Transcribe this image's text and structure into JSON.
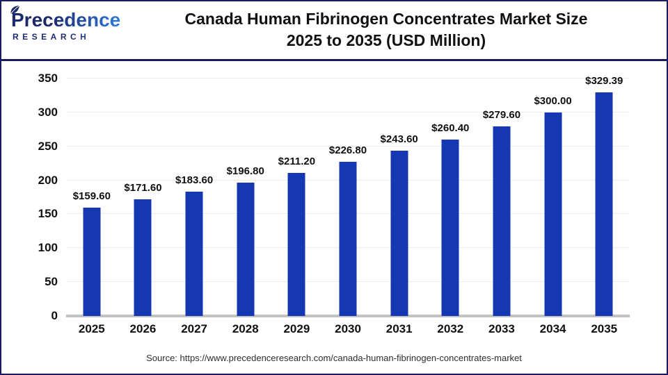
{
  "header": {
    "logo": {
      "brand": "Precedence",
      "sub": "RESEARCH"
    },
    "title_line1": "Canada Human Fibrinogen Concentrates Market Size",
    "title_line2": "2025 to 2035 (USD Million)"
  },
  "chart_data": {
    "type": "bar",
    "title": "Canada Human Fibrinogen Concentrates Market Size 2025 to 2035 (USD Million)",
    "categories": [
      "2025",
      "2026",
      "2027",
      "2028",
      "2029",
      "2030",
      "2031",
      "2032",
      "2033",
      "2034",
      "2035"
    ],
    "values": [
      159.6,
      171.6,
      183.6,
      196.8,
      211.2,
      226.8,
      243.6,
      260.4,
      279.6,
      300.0,
      329.39
    ],
    "bar_labels": [
      "$159.60",
      "$171.60",
      "$183.60",
      "$196.80",
      "$211.20",
      "$226.80",
      "$243.60",
      "$260.40",
      "$279.60",
      "$300.00",
      "$329.39"
    ],
    "xlabel": "",
    "ylabel": "",
    "ylim": [
      0,
      350
    ],
    "yticks": [
      0,
      50,
      100,
      150,
      200,
      250,
      300,
      350
    ],
    "grid": "horizontal",
    "legend_position": "none",
    "bar_color": "#1538b2"
  },
  "footer": {
    "source": "Source: https://www.precedenceresearch.com/canada-human-fibrinogen-concentrates-market"
  },
  "colors": {
    "frame": "#1b1b5e",
    "grid": "#ececec",
    "axis": "#c2c2c2",
    "logo_dark": "#1c2a6d",
    "logo_light": "#2f7ce2",
    "text": "#111111",
    "source_text": "#2e2e2e"
  }
}
